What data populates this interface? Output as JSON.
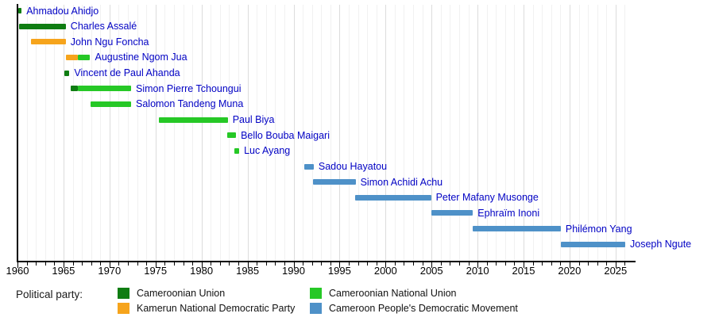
{
  "chart_data": {
    "type": "timeline",
    "axis": {
      "year_start": 1960,
      "year_end": 2027,
      "tick_labels": [
        1960,
        1965,
        1970,
        1975,
        1980,
        1985,
        1990,
        1995,
        2000,
        2005,
        2010,
        2015,
        2020,
        2025
      ],
      "minor_tick_step": 1,
      "grid": "on"
    },
    "label_color": "#0202c4",
    "parties": {
      "CU": {
        "name": "Cameroonian Union",
        "color": "#0f7d12"
      },
      "KNDP": {
        "name": "Kamerun National Democratic Party",
        "color": "#f6a41c"
      },
      "CNU": {
        "name": "Cameroonian National Union",
        "color": "#26c826"
      },
      "CPDM": {
        "name": "Cameroon People's Democratic Movement",
        "color": "#4e91c8"
      }
    },
    "people": [
      {
        "name": "Ahmadou Ahidjo",
        "segments": [
          {
            "start": 1960.05,
            "end": 1960.45,
            "party": "CU"
          }
        ]
      },
      {
        "name": "Charles Assalé",
        "segments": [
          {
            "start": 1960.2,
            "end": 1965.25,
            "party": "CU"
          }
        ]
      },
      {
        "name": "John Ngu Foncha",
        "segments": [
          {
            "start": 1961.5,
            "end": 1965.25,
            "party": "KNDP"
          }
        ]
      },
      {
        "name": "Augustine Ngom Jua",
        "segments": [
          {
            "start": 1965.3,
            "end": 1966.55,
            "party": "KNDP"
          },
          {
            "start": 1966.55,
            "end": 1967.9,
            "party": "CNU"
          }
        ]
      },
      {
        "name": "Vincent de Paul Ahanda",
        "segments": [
          {
            "start": 1965.1,
            "end": 1965.65,
            "party": "CU"
          }
        ]
      },
      {
        "name": "Simon Pierre Tchoungui",
        "segments": [
          {
            "start": 1965.75,
            "end": 1966.55,
            "party": "CU"
          },
          {
            "start": 1966.55,
            "end": 1972.35,
            "party": "CNU"
          }
        ]
      },
      {
        "name": "Salomon Tandeng Muna",
        "segments": [
          {
            "start": 1967.9,
            "end": 1972.35,
            "party": "CNU"
          }
        ]
      },
      {
        "name": "Paul Biya",
        "segments": [
          {
            "start": 1975.4,
            "end": 1982.85,
            "party": "CNU"
          }
        ]
      },
      {
        "name": "Bello Bouba Maigari",
        "segments": [
          {
            "start": 1982.75,
            "end": 1983.75,
            "party": "CNU"
          }
        ]
      },
      {
        "name": "Luc Ayang",
        "segments": [
          {
            "start": 1983.6,
            "end": 1984.1,
            "party": "CNU"
          }
        ]
      },
      {
        "name": "Sadou Hayatou",
        "segments": [
          {
            "start": 1991.2,
            "end": 1992.2,
            "party": "CPDM"
          }
        ]
      },
      {
        "name": "Simon Achidi Achu",
        "segments": [
          {
            "start": 1992.15,
            "end": 1996.75,
            "party": "CPDM"
          }
        ]
      },
      {
        "name": "Peter Mafany Musonge",
        "segments": [
          {
            "start": 1996.7,
            "end": 2004.95,
            "party": "CPDM"
          }
        ]
      },
      {
        "name": "Ephraïm Inoni",
        "segments": [
          {
            "start": 2004.95,
            "end": 2009.5,
            "party": "CPDM"
          }
        ]
      },
      {
        "name": "Philémon Yang",
        "segments": [
          {
            "start": 2009.5,
            "end": 2019.05,
            "party": "CPDM"
          }
        ]
      },
      {
        "name": "Joseph Ngute",
        "segments": [
          {
            "start": 2019.05,
            "end": 2026.05,
            "party": "CPDM"
          }
        ]
      }
    ]
  },
  "legend": {
    "title": "Political party:"
  }
}
